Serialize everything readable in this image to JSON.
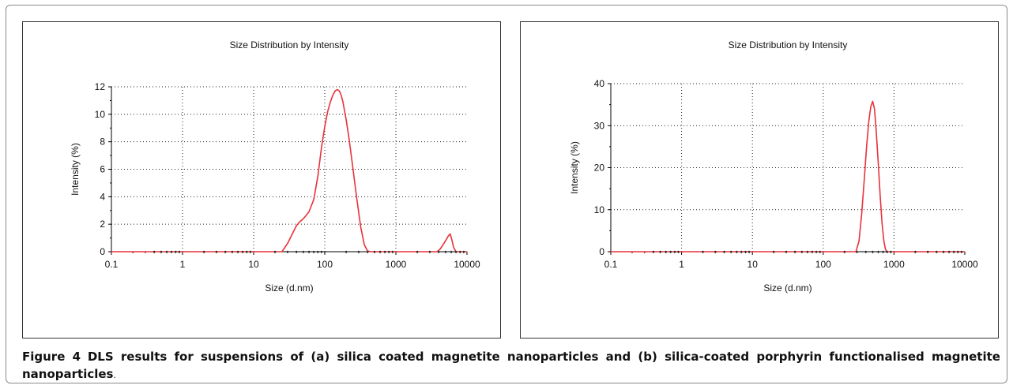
{
  "caption": {
    "label": "Figure 4",
    "text": "DLS results for suspensions of (a) silica coated magnetite nanoparticles and (b) silica-coated porphyrin functionalised magnetite nanoparticles",
    "period": "."
  },
  "chart_data": [
    {
      "type": "line",
      "title": "Size Distribution by Intensity",
      "xlabel": "Size (d.nm)",
      "ylabel": "Intensity (%)",
      "x_scale": "log",
      "xlim": [
        0.1,
        10000
      ],
      "ylim": [
        0,
        12
      ],
      "x_ticks": [
        "0.1",
        "1",
        "10",
        "100",
        "1000",
        "10000"
      ],
      "y_ticks": [
        "0",
        "2",
        "4",
        "6",
        "8",
        "10",
        "12"
      ],
      "grid": "dotted",
      "line_color": "#e8323a",
      "series": [
        {
          "x": [
            0.1,
            25,
            30,
            35,
            40,
            45,
            50,
            60,
            70,
            80,
            90,
            100,
            110,
            120,
            130,
            140,
            150,
            160,
            170,
            180,
            200,
            220,
            250,
            280,
            320,
            360,
            400,
            450,
            500,
            3800,
            4200,
            4600,
            5000,
            5400,
            5800,
            6100,
            6500,
            7000,
            10000
          ],
          "y": [
            0,
            0,
            0.6,
            1.3,
            1.9,
            2.2,
            2.4,
            2.9,
            3.8,
            5.5,
            7.6,
            9.1,
            10.2,
            10.9,
            11.4,
            11.7,
            11.8,
            11.7,
            11.4,
            10.9,
            9.6,
            8.2,
            6.0,
            4.0,
            1.8,
            0.5,
            0.05,
            0,
            0,
            0,
            0.2,
            0.5,
            0.8,
            1.1,
            1.3,
            0.9,
            0.3,
            0,
            0
          ]
        }
      ]
    },
    {
      "type": "line",
      "title": "Size Distribution by Intensity",
      "xlabel": "Size (d.nm)",
      "ylabel": "Intensity (%)",
      "x_scale": "log",
      "xlim": [
        0.1,
        10000
      ],
      "ylim": [
        0,
        40
      ],
      "x_ticks": [
        "0.1",
        "1",
        "10",
        "100",
        "1000",
        "10000"
      ],
      "y_ticks": [
        "0",
        "10",
        "20",
        "30",
        "40"
      ],
      "grid": "dotted",
      "line_color": "#e8323a",
      "series": [
        {
          "x": [
            0.1,
            290,
            320,
            350,
            380,
            410,
            440,
            470,
            500,
            530,
            560,
            600,
            640,
            680,
            720,
            760,
            800,
            10000
          ],
          "y": [
            0,
            0,
            2.5,
            9,
            17,
            25,
            31,
            34.5,
            35.8,
            34,
            29,
            21,
            13,
            6.5,
            2.5,
            0.5,
            0,
            0
          ]
        }
      ]
    }
  ]
}
